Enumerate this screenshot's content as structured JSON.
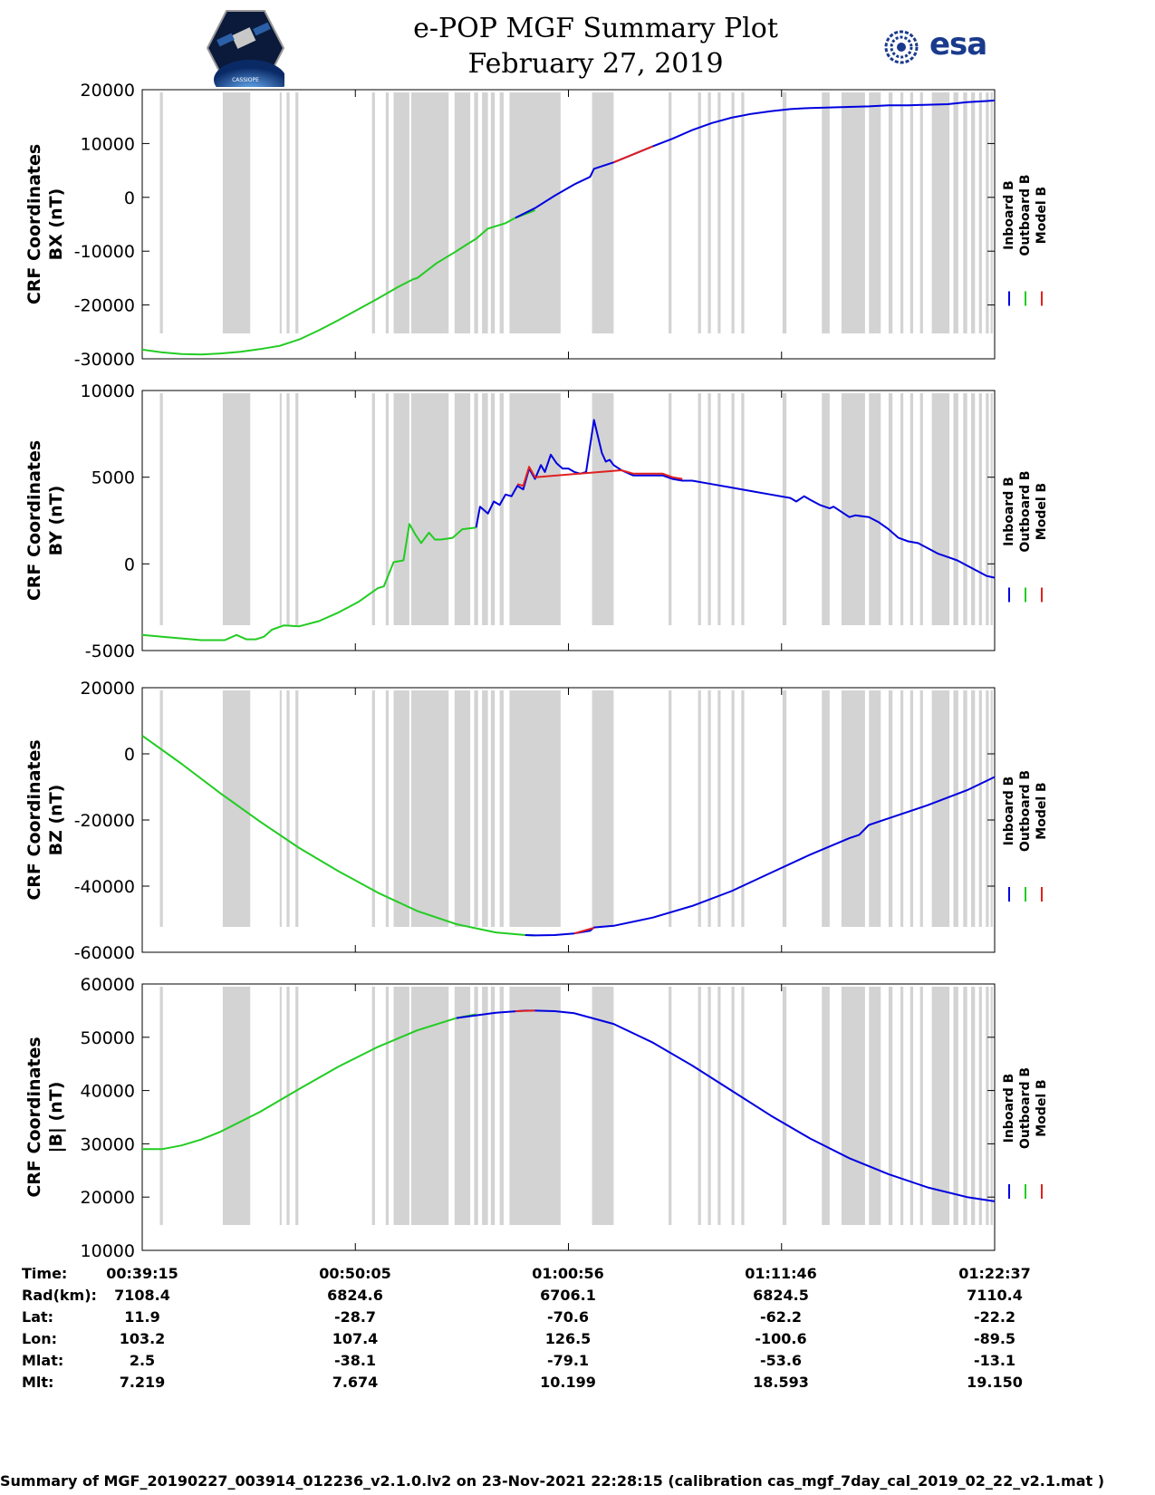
{
  "title": {
    "line1": "e-POP MGF Summary Plot",
    "line2": "February 27, 2019"
  },
  "logos": {
    "left_caption": "CASSIOPE",
    "right_text": "esa",
    "right_color": "#1a3a8c"
  },
  "colors": {
    "inboard": "#0000e0",
    "outboard": "#22cc22",
    "model": "#e02020",
    "gap": "#d3d3d3"
  },
  "legend": [
    "Inboard B",
    "Outboard B",
    "Model B"
  ],
  "info_rows": [
    {
      "label": "Time:",
      "values": [
        "00:39:15",
        "00:50:05",
        "01:00:56",
        "01:11:46",
        "01:22:37"
      ]
    },
    {
      "label": "Rad(km):",
      "values": [
        "7108.4",
        "6824.6",
        "6706.1",
        "6824.5",
        "7110.4"
      ]
    },
    {
      "label": "Lat:",
      "values": [
        "11.9",
        "-28.7",
        "-70.6",
        "-62.2",
        "-22.2"
      ]
    },
    {
      "label": "Lon:",
      "values": [
        "103.2",
        "107.4",
        "126.5",
        "-100.6",
        "-89.5"
      ]
    },
    {
      "label": "Mlat:",
      "values": [
        "2.5",
        "-38.1",
        "-79.1",
        "-53.6",
        "-13.1"
      ]
    },
    {
      "label": "Mlt:",
      "values": [
        "7.219",
        "7.674",
        "10.199",
        "18.593",
        "19.150"
      ]
    }
  ],
  "footer": "Summary of MGF_20190227_003914_012236_v2.1.0.lv2 on 23-Nov-2021 22:28:15 (calibration cas_mgf_7day_cal_2019_02_22_v2.1.mat )",
  "chart_data": {
    "type": "line",
    "x_range_min": [
      0,
      43.4
    ],
    "x_ticks_min": [
      0,
      10.85,
      21.7,
      32.55,
      43.4
    ],
    "data_gaps_min": [
      [
        0.9,
        1.05
      ],
      [
        4.1,
        5.5
      ],
      [
        7.0,
        7.1
      ],
      [
        7.35,
        7.5
      ],
      [
        7.8,
        7.95
      ],
      [
        11.7,
        11.85
      ],
      [
        12.4,
        12.55
      ],
      [
        12.8,
        13.6
      ],
      [
        13.7,
        15.6
      ],
      [
        15.9,
        16.7
      ],
      [
        16.9,
        17.1
      ],
      [
        17.3,
        17.6
      ],
      [
        17.75,
        17.95
      ],
      [
        18.2,
        18.4
      ],
      [
        18.7,
        21.3
      ],
      [
        22.9,
        24.0
      ],
      [
        26.8,
        26.95
      ],
      [
        28.3,
        28.45
      ],
      [
        28.8,
        28.95
      ],
      [
        29.3,
        29.45
      ],
      [
        30.0,
        30.15
      ],
      [
        30.5,
        30.65
      ],
      [
        32.6,
        32.8
      ],
      [
        34.6,
        35.0
      ],
      [
        35.6,
        36.8
      ],
      [
        37.0,
        37.6
      ],
      [
        38.0,
        38.2
      ],
      [
        38.6,
        38.75
      ],
      [
        39.1,
        39.25
      ],
      [
        39.6,
        39.75
      ],
      [
        40.2,
        41.1
      ],
      [
        41.3,
        41.55
      ],
      [
        41.8,
        42.0
      ],
      [
        42.2,
        42.4
      ],
      [
        42.6,
        42.75
      ],
      [
        42.95,
        43.1
      ],
      [
        43.2,
        43.3
      ]
    ],
    "panels": [
      {
        "ylabel_line1": "CRF Coordinates",
        "ylabel_line2": "BX (nT)",
        "ylim": [
          -30000,
          20000
        ],
        "yticks": [
          20000,
          10000,
          0,
          -10000,
          -20000,
          -30000
        ],
        "yticklabels": [
          "20000",
          "10000",
          "0",
          "-10000",
          "-20000",
          "-30000"
        ],
        "series": [
          {
            "name": "Outboard B",
            "x": [
              0,
              1,
              2,
              3,
              4,
              5,
              6,
              7,
              8,
              9,
              10,
              11,
              12,
              13,
              13.8,
              14,
              15,
              16,
              16.5,
              17,
              17.6,
              18.5,
              19,
              20
            ],
            "y": [
              -28300,
              -28800,
              -29100,
              -29200,
              -29000,
              -28700,
              -28200,
              -27600,
              -26400,
              -24700,
              -22800,
              -20800,
              -18800,
              -16700,
              -15200,
              -15000,
              -12200,
              -10000,
              -8800,
              -7700,
              -5800,
              -4800,
              -3800,
              -2400
            ]
          },
          {
            "name": "Inboard B",
            "x": [
              19,
              20,
              21,
              22,
              22.8,
              23,
              24,
              25,
              26,
              27,
              28,
              29,
              30,
              31,
              32,
              33,
              34,
              35,
              36,
              37,
              38,
              39,
              40,
              41,
              42,
              43,
              43.4
            ],
            "y": [
              -3800,
              -2000,
              300,
              2400,
              3800,
              5300,
              6500,
              8000,
              9500,
              10900,
              12500,
              13800,
              14800,
              15500,
              16000,
              16400,
              16600,
              16700,
              16800,
              16900,
              17100,
              17100,
              17200,
              17300,
              17700,
              17900,
              18000
            ]
          },
          {
            "name": "Model B",
            "x": [
              24,
              25,
              26
            ],
            "y": [
              6500,
              8000,
              9500
            ]
          }
        ]
      },
      {
        "ylabel_line1": "CRF Coordinates",
        "ylabel_line2": "BY (nT)",
        "ylim": [
          -5000,
          10000
        ],
        "yticks": [
          10000,
          5000,
          0,
          -5000
        ],
        "yticklabels": [
          "10000",
          "5000",
          "0",
          "-5000"
        ],
        "series": [
          {
            "name": "Outboard B",
            "x": [
              0,
              1,
              2,
              3,
              3.5,
              4.2,
              4.8,
              5.3,
              5.8,
              6.2,
              6.6,
              7.2,
              8,
              9,
              10,
              11,
              12,
              12.3,
              12.8,
              13.3,
              13.6,
              13.9,
              14.2,
              14.6,
              14.9,
              15.2,
              15.8,
              16.3,
              17.0
            ],
            "y": [
              -4100,
              -4200,
              -4300,
              -4400,
              -4400,
              -4400,
              -4100,
              -4350,
              -4350,
              -4200,
              -3800,
              -3550,
              -3600,
              -3300,
              -2800,
              -2200,
              -1400,
              -1300,
              100,
              200,
              2300,
              1700,
              1200,
              1800,
              1400,
              1400,
              1500,
              2000,
              2100
            ]
          },
          {
            "name": "Inboard B",
            "x": [
              17.0,
              17.2,
              17.6,
              17.9,
              18.2,
              18.5,
              18.8,
              19.1,
              19.4,
              19.7,
              20.0,
              20.3,
              20.5,
              20.8,
              21.1,
              21.4,
              21.7,
              22.0,
              22.3,
              22.6,
              23.0,
              23.4,
              23.6,
              23.8,
              24.0,
              24.4,
              25.0,
              25.8,
              26.5,
              27.0,
              27.5,
              28,
              29,
              30,
              31,
              32,
              33,
              33.3,
              33.7,
              34,
              34.5,
              35.0,
              35.2,
              35.6,
              36.0,
              36.3,
              37.0,
              37.5,
              38.0,
              38.5,
              39.0,
              39.5,
              40.0,
              40.5,
              41.0,
              41.5,
              42.0,
              42.5,
              43.0,
              43.4
            ],
            "y": [
              2100,
              3300,
              2900,
              3600,
              3400,
              4000,
              3900,
              4500,
              4300,
              5500,
              4900,
              5700,
              5300,
              6300,
              5800,
              5500,
              5500,
              5300,
              5200,
              5300,
              8300,
              6400,
              5900,
              6000,
              5700,
              5400,
              5100,
              5100,
              5100,
              4900,
              4800,
              4800,
              4600,
              4400,
              4200,
              4000,
              3800,
              3600,
              3900,
              3700,
              3400,
              3200,
              3300,
              3000,
              2700,
              2800,
              2700,
              2400,
              2000,
              1500,
              1300,
              1200,
              900,
              600,
              400,
              200,
              -100,
              -400,
              -700,
              -800
            ]
          },
          {
            "name": "Model B",
            "x": [
              19.1,
              19.4,
              19.7,
              20.0,
              24.4,
              25.0,
              25.8,
              26.5,
              27.0,
              27.5
            ],
            "y": [
              4600,
              4500,
              5600,
              5000,
              5400,
              5200,
              5200,
              5200,
              5000,
              4900
            ]
          }
        ]
      },
      {
        "ylabel_line1": "CRF Coordinates",
        "ylabel_line2": "BZ (nT)",
        "ylim": [
          -60000,
          20000
        ],
        "yticks": [
          20000,
          0,
          -20000,
          -40000,
          -60000
        ],
        "yticklabels": [
          "20000",
          "0",
          "-20000",
          "-40000",
          "-60000"
        ],
        "series": [
          {
            "name": "Outboard B",
            "x": [
              0,
              2,
              4,
              6,
              8,
              10,
              12,
              14,
              16,
              18,
              19.5,
              20
            ],
            "y": [
              5500,
              -3000,
              -12000,
              -20500,
              -28500,
              -35500,
              -42000,
              -47500,
              -51500,
              -54000,
              -54800,
              -54900
            ]
          },
          {
            "name": "Inboard B",
            "x": [
              19.5,
              20,
              21,
              22,
              22.8,
              23,
              24,
              26,
              28,
              30,
              32,
              34,
              36,
              36.5,
              37,
              38,
              40,
              42,
              43.4
            ],
            "y": [
              -54800,
              -54900,
              -54800,
              -54300,
              -53500,
              -52500,
              -52000,
              -49500,
              -46000,
              -41500,
              -36000,
              -30500,
              -25500,
              -24500,
              -21500,
              -19500,
              -15500,
              -11000,
              -7000
            ]
          },
          {
            "name": "Model B",
            "x": [
              22,
              23
            ],
            "y": [
              -54300,
              -52600
            ]
          }
        ]
      },
      {
        "ylabel_line1": "CRF Coordinates",
        "ylabel_line2": "|B| (nT)",
        "ylim": [
          10000,
          60000
        ],
        "yticks": [
          60000,
          50000,
          40000,
          30000,
          20000,
          10000
        ],
        "yticklabels": [
          "60000",
          "50000",
          "40000",
          "30000",
          "20000",
          "10000"
        ],
        "series": [
          {
            "name": "Outboard B",
            "x": [
              0,
              1,
              2,
              3,
              4,
              6,
              8,
              10,
              12,
              14,
              16,
              17
            ],
            "y": [
              29000,
              29000,
              29700,
              30800,
              32300,
              36000,
              40300,
              44500,
              48200,
              51300,
              53600,
              54300
            ]
          },
          {
            "name": "Inboard B",
            "x": [
              16,
              18,
              19.5,
              20,
              21,
              22,
              24,
              26,
              28,
              30,
              32,
              34,
              36,
              38,
              40,
              42,
              43.4
            ],
            "y": [
              53600,
              54600,
              55000,
              55000,
              54900,
              54500,
              52500,
              49000,
              44700,
              40000,
              35300,
              31000,
              27300,
              24300,
              21800,
              20000,
              19200
            ]
          },
          {
            "name": "Model B",
            "x": [
              19,
              20
            ],
            "y": [
              54900,
              55000
            ]
          }
        ]
      }
    ]
  }
}
